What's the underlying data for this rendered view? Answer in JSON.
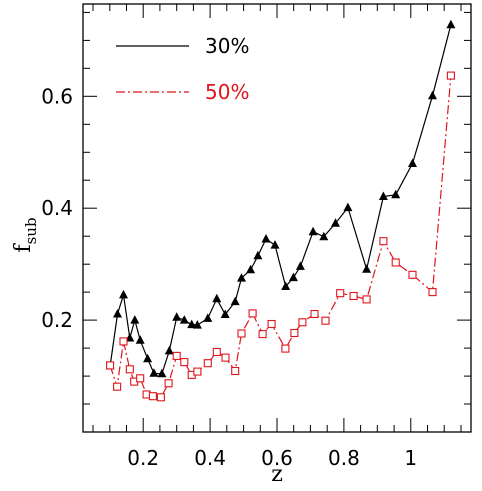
{
  "chart_data": {
    "type": "line",
    "title": "",
    "xlabel": "z",
    "ylabel": "f",
    "ylabel_sub": "sub",
    "xlim": [
      0.02,
      1.18
    ],
    "ylim": [
      0.0,
      0.765
    ],
    "xticks": [
      0.2,
      0.4,
      0.6,
      0.8,
      1.0
    ],
    "xtick_labels": [
      "0.2",
      "0.4",
      "0.6",
      "0.8",
      "1"
    ],
    "yticks": [
      0.2,
      0.4,
      0.6
    ],
    "ytick_labels": [
      "0.2",
      "0.4",
      "0.6"
    ],
    "grid": false,
    "legend_position": "top-left",
    "series": [
      {
        "name": "30%",
        "color": "#000000",
        "line_style": "solid",
        "marker": "filled-triangle",
        "points": [
          [
            0.101,
            0.118
          ],
          [
            0.123,
            0.211
          ],
          [
            0.141,
            0.245
          ],
          [
            0.16,
            0.168
          ],
          [
            0.175,
            0.2
          ],
          [
            0.191,
            0.164
          ],
          [
            0.213,
            0.131
          ],
          [
            0.232,
            0.105
          ],
          [
            0.256,
            0.104
          ],
          [
            0.278,
            0.145
          ],
          [
            0.3,
            0.205
          ],
          [
            0.323,
            0.2
          ],
          [
            0.345,
            0.192
          ],
          [
            0.362,
            0.191
          ],
          [
            0.393,
            0.203
          ],
          [
            0.42,
            0.238
          ],
          [
            0.445,
            0.21
          ],
          [
            0.475,
            0.233
          ],
          [
            0.494,
            0.275
          ],
          [
            0.521,
            0.29
          ],
          [
            0.543,
            0.315
          ],
          [
            0.567,
            0.345
          ],
          [
            0.594,
            0.334
          ],
          [
            0.626,
            0.26
          ],
          [
            0.649,
            0.276
          ],
          [
            0.67,
            0.296
          ],
          [
            0.708,
            0.358
          ],
          [
            0.74,
            0.349
          ],
          [
            0.775,
            0.373
          ],
          [
            0.812,
            0.401
          ],
          [
            0.868,
            0.291
          ],
          [
            0.918,
            0.421
          ],
          [
            0.955,
            0.424
          ],
          [
            1.005,
            0.48
          ],
          [
            1.065,
            0.601
          ],
          [
            1.12,
            0.728
          ]
        ]
      },
      {
        "name": "50%",
        "color": "#e0141c",
        "line_style": "dash-dot",
        "marker": "open-square",
        "points": [
          [
            0.101,
            0.119
          ],
          [
            0.122,
            0.081
          ],
          [
            0.141,
            0.162
          ],
          [
            0.16,
            0.112
          ],
          [
            0.173,
            0.09
          ],
          [
            0.191,
            0.096
          ],
          [
            0.21,
            0.067
          ],
          [
            0.229,
            0.064
          ],
          [
            0.253,
            0.062
          ],
          [
            0.276,
            0.087
          ],
          [
            0.3,
            0.136
          ],
          [
            0.323,
            0.125
          ],
          [
            0.345,
            0.102
          ],
          [
            0.362,
            0.108
          ],
          [
            0.393,
            0.123
          ],
          [
            0.42,
            0.143
          ],
          [
            0.446,
            0.133
          ],
          [
            0.475,
            0.109
          ],
          [
            0.494,
            0.176
          ],
          [
            0.527,
            0.212
          ],
          [
            0.557,
            0.175
          ],
          [
            0.584,
            0.193
          ],
          [
            0.625,
            0.149
          ],
          [
            0.652,
            0.177
          ],
          [
            0.676,
            0.196
          ],
          [
            0.712,
            0.211
          ],
          [
            0.745,
            0.199
          ],
          [
            0.789,
            0.248
          ],
          [
            0.829,
            0.243
          ],
          [
            0.868,
            0.237
          ],
          [
            0.918,
            0.341
          ],
          [
            0.955,
            0.303
          ],
          [
            1.005,
            0.281
          ],
          [
            1.065,
            0.25
          ],
          [
            1.12,
            0.637
          ]
        ]
      }
    ]
  }
}
